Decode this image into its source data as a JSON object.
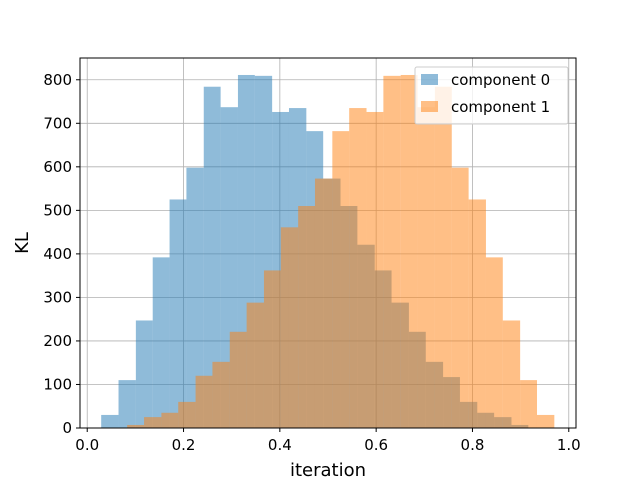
{
  "chart_data": {
    "type": "bar",
    "xlabel": "iteration",
    "ylabel": "KL",
    "xlim": [
      -0.015,
      1.015
    ],
    "ylim": [
      0,
      850
    ],
    "xticks": [
      0.0,
      0.2,
      0.4,
      0.6,
      0.8,
      1.0
    ],
    "xtick_labels": [
      "0.0",
      "0.2",
      "0.4",
      "0.6",
      "0.8",
      "1.0"
    ],
    "yticks": [
      0,
      100,
      200,
      300,
      400,
      500,
      600,
      700,
      800
    ],
    "ytick_labels": [
      "0",
      "100",
      "200",
      "300",
      "400",
      "500",
      "600",
      "700",
      "800"
    ],
    "grid": true,
    "legend_position": "top-right",
    "series": [
      {
        "name": "component 0",
        "color": "#1f77b4",
        "opacity": 0.5,
        "bins": [
          [
            0.029,
            0.065,
            30
          ],
          [
            0.065,
            0.101,
            110
          ],
          [
            0.101,
            0.136,
            247
          ],
          [
            0.136,
            0.171,
            392
          ],
          [
            0.171,
            0.206,
            525
          ],
          [
            0.206,
            0.242,
            598
          ],
          [
            0.242,
            0.277,
            784
          ],
          [
            0.277,
            0.313,
            737
          ],
          [
            0.313,
            0.348,
            811
          ],
          [
            0.348,
            0.384,
            809
          ],
          [
            0.384,
            0.419,
            726
          ],
          [
            0.419,
            0.455,
            735
          ],
          [
            0.455,
            0.49,
            682
          ],
          [
            0.49,
            0.526,
            573
          ],
          [
            0.526,
            0.561,
            510
          ],
          [
            0.561,
            0.597,
            421
          ],
          [
            0.597,
            0.632,
            362
          ],
          [
            0.632,
            0.668,
            288
          ],
          [
            0.668,
            0.703,
            221
          ],
          [
            0.703,
            0.739,
            152
          ],
          [
            0.739,
            0.774,
            117
          ],
          [
            0.774,
            0.81,
            60
          ],
          [
            0.81,
            0.845,
            35
          ],
          [
            0.845,
            0.881,
            25
          ],
          [
            0.881,
            0.916,
            7
          ]
        ]
      },
      {
        "name": "component 1",
        "color": "#ff7f0e",
        "opacity": 0.5,
        "bins": [
          [
            0.083,
            0.118,
            7
          ],
          [
            0.118,
            0.154,
            25
          ],
          [
            0.154,
            0.189,
            35
          ],
          [
            0.189,
            0.225,
            60
          ],
          [
            0.225,
            0.26,
            120
          ],
          [
            0.26,
            0.296,
            152
          ],
          [
            0.296,
            0.331,
            221
          ],
          [
            0.331,
            0.367,
            288
          ],
          [
            0.367,
            0.402,
            362
          ],
          [
            0.402,
            0.438,
            461
          ],
          [
            0.438,
            0.473,
            510
          ],
          [
            0.473,
            0.509,
            573
          ],
          [
            0.509,
            0.544,
            682
          ],
          [
            0.544,
            0.58,
            735
          ],
          [
            0.58,
            0.615,
            726
          ],
          [
            0.615,
            0.651,
            809
          ],
          [
            0.651,
            0.686,
            811
          ],
          [
            0.686,
            0.722,
            737
          ],
          [
            0.722,
            0.757,
            784
          ],
          [
            0.757,
            0.792,
            598
          ],
          [
            0.792,
            0.828,
            525
          ],
          [
            0.828,
            0.863,
            392
          ],
          [
            0.863,
            0.899,
            247
          ],
          [
            0.899,
            0.934,
            110
          ],
          [
            0.934,
            0.97,
            30
          ]
        ]
      }
    ]
  }
}
